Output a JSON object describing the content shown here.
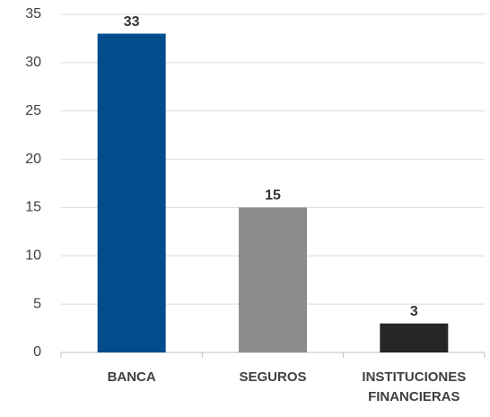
{
  "chart_data": {
    "type": "bar",
    "categories": [
      "BANCA",
      "SEGUROS",
      "INSTITUCIONES FINANCIERAS"
    ],
    "values": [
      33,
      15,
      3
    ],
    "colors": [
      "#004c8c",
      "#8c8c8c",
      "#262626"
    ],
    "ylim": [
      0,
      35
    ],
    "yticks": [
      0,
      5,
      10,
      15,
      20,
      25,
      30,
      35
    ],
    "grid": true
  }
}
